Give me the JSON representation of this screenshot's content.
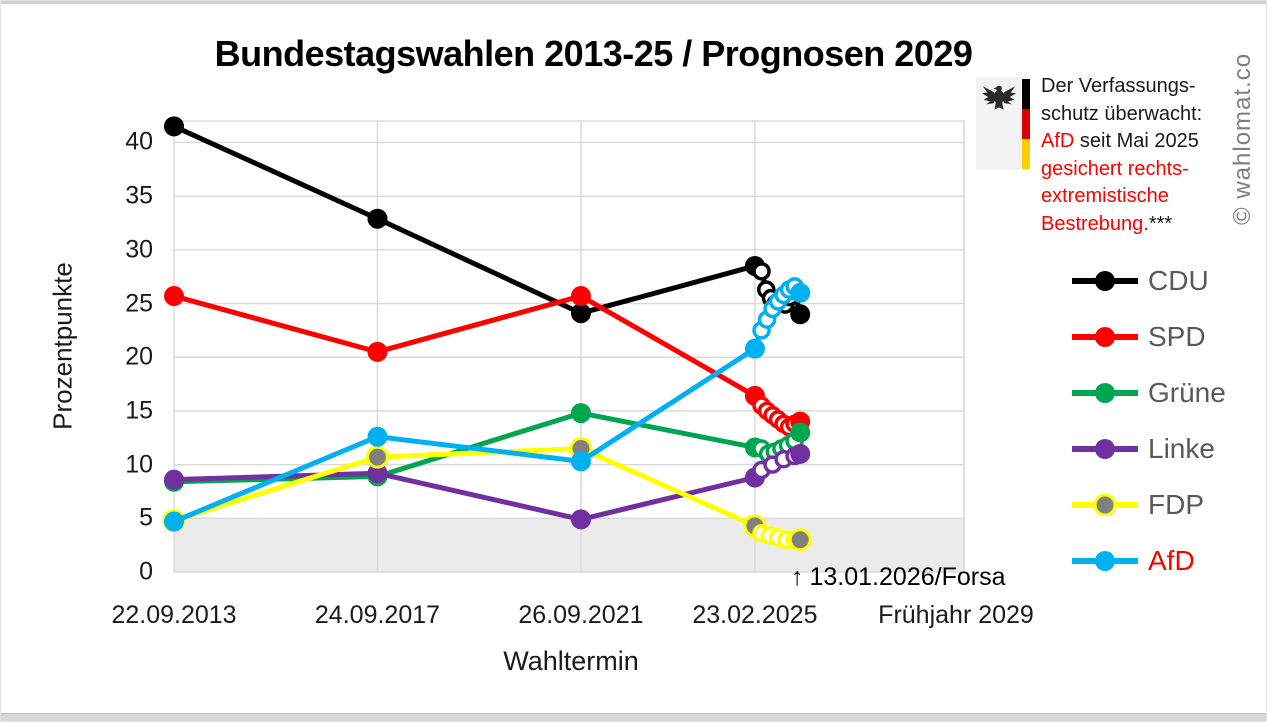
{
  "watermark": "© wahlomat.co",
  "verfassungsschutz_note": {
    "line1": "Der Verfassungs-",
    "line2": "schutz überwacht:",
    "line3_highlight": "AfD",
    "line3_rest": " seit Mai 2025",
    "line4": "gesichert rechts-",
    "line5": "extremistische",
    "line6_highlight": "Bestrebung.",
    "line6_suffix": "***",
    "highlight_color": "#ff0000",
    "flag_colors": [
      "#000000",
      "#dd0000",
      "#ffce00"
    ]
  },
  "forsa_note": {
    "arrow": "↑",
    "label": "13.01.2026/Forsa"
  },
  "chart_data": {
    "type": "line",
    "title": "Bundestagswahlen 2013-25 / Prognosen 2029",
    "xlabel": "Wahltermin",
    "ylabel": "Prozentpunkte",
    "categories": [
      "22.09.2013",
      "24.09.2017",
      "26.09.2021",
      "23.02.2025",
      "Frühjahr 2029"
    ],
    "category_x_years": [
      0,
      4.0,
      8.0,
      11.42,
      15.53
    ],
    "yticks": [
      0,
      5,
      10,
      15,
      20,
      25,
      30,
      35,
      40
    ],
    "ylim": [
      0,
      42
    ],
    "grid": true,
    "grid_color": "#d9d9d9",
    "threshold_band": {
      "from": 0,
      "to": 5,
      "color": "#ebebeb"
    },
    "legend_position": "right",
    "legend_text_color": "#595959",
    "polls_x_years_range": [
      11.55,
      12.2
    ],
    "forsa_poll_x_years": 12.31,
    "series": [
      {
        "name": "CDU",
        "color": "#000000",
        "elections": [
          41.5,
          32.9,
          24.1,
          28.5
        ],
        "polls_2025": [
          28,
          26.3,
          25.5,
          25,
          25.3,
          24.9,
          25.6,
          26.2
        ],
        "forsa_13_01_2026": 24
      },
      {
        "name": "SPD",
        "color": "#ff0000",
        "elections": [
          25.7,
          20.5,
          25.7,
          16.4
        ],
        "polls_2025": [
          15.5,
          15,
          14.6,
          14.2,
          13.8,
          13.5,
          13.8
        ],
        "forsa_13_01_2026": 14
      },
      {
        "name": "Grüne",
        "color": "#00a550",
        "elections": [
          8.4,
          8.9,
          14.8,
          11.6
        ],
        "polls_2025": [
          11.5,
          11,
          11.2,
          11.5,
          11.8,
          12.2
        ],
        "forsa_13_01_2026": 13
      },
      {
        "name": "Linke",
        "color": "#7030a0",
        "elections": [
          8.6,
          9.2,
          4.9,
          8.8
        ],
        "polls_2025": [
          9.5,
          10,
          10.5,
          10.8
        ],
        "forsa_13_01_2026": 11
      },
      {
        "name": "FDP",
        "color": "#ffff00",
        "marker_color": "#808080",
        "elections": [
          4.8,
          10.7,
          11.5,
          4.3
        ],
        "polls_2025": [
          3.6,
          3.4,
          3.2,
          3,
          3
        ],
        "forsa_13_01_2026": 3
      },
      {
        "name": "AfD",
        "color": "#00b0f0",
        "label_color": "#ff0000",
        "elections": [
          4.7,
          12.6,
          10.3,
          20.8
        ],
        "polls_2025": [
          22.5,
          23.5,
          24.5,
          25.2,
          25.8,
          26.3,
          26.6
        ],
        "forsa_13_01_2026": 26
      }
    ]
  }
}
